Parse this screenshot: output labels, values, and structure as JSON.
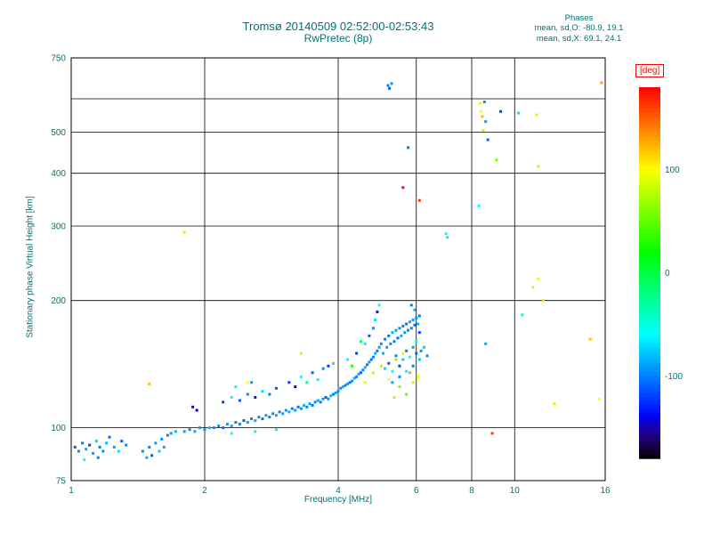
{
  "title": "Tromsø 20140509 02:52:00-02:53:43",
  "subtitle": "RwPretec (8p)",
  "stats": {
    "header": "Phases",
    "line_o": "mean, sd,O: -80.9, 19.1",
    "line_x": "mean, sd,X:  69.1, 24.1"
  },
  "colors": {
    "text": "#007373",
    "grid": "#000000",
    "background": "#ffffff",
    "colorbar_label": "#ff0000"
  },
  "chart_data": {
    "type": "scatter",
    "title": "Tromsø 20140509 02:52:00-02:53:43",
    "subtitle": "RwPretec (8p)",
    "xlabel": "Frequency [MHz]",
    "ylabel": "Stationary phase Virtual Height [km]",
    "x_scale": "log",
    "y_scale": "log",
    "xlim": [
      1,
      16
    ],
    "ylim": [
      75,
      750
    ],
    "x_ticks": [
      1,
      2,
      4,
      6,
      8,
      10,
      16
    ],
    "y_ticks": [
      750,
      500,
      400,
      300,
      200,
      100,
      75
    ],
    "x_gridlines": [
      2,
      4,
      6,
      8,
      10
    ],
    "y_gridlines": [
      100,
      200,
      300,
      400,
      500,
      600
    ],
    "grid": true,
    "colorbar": {
      "label": "[deg]",
      "min": -180,
      "max": 180,
      "ticks": [
        100,
        0,
        -100
      ]
    },
    "point_format": [
      "frequency_MHz",
      "virtual_height_km",
      "phase_deg"
    ],
    "points": [
      [
        1.02,
        90,
        -110
      ],
      [
        1.04,
        88,
        -95
      ],
      [
        1.06,
        92,
        -100
      ],
      [
        1.07,
        84,
        -60
      ],
      [
        1.08,
        89,
        -85
      ],
      [
        1.1,
        91,
        -120
      ],
      [
        1.12,
        87,
        -90
      ],
      [
        1.14,
        93,
        -75
      ],
      [
        1.15,
        85,
        -100
      ],
      [
        1.16,
        90,
        -100
      ],
      [
        1.18,
        88,
        -95
      ],
      [
        1.2,
        92,
        -80
      ],
      [
        1.22,
        95,
        -105
      ],
      [
        1.25,
        90,
        -90
      ],
      [
        1.28,
        88,
        -70
      ],
      [
        1.3,
        93,
        -110
      ],
      [
        1.33,
        91,
        -95
      ],
      [
        1.45,
        88,
        -95
      ],
      [
        1.48,
        85,
        -85
      ],
      [
        1.5,
        90,
        -100
      ],
      [
        1.52,
        86,
        -110
      ],
      [
        1.55,
        92,
        -90
      ],
      [
        1.58,
        88,
        -75
      ],
      [
        1.6,
        94,
        -95
      ],
      [
        1.62,
        90,
        -85
      ],
      [
        1.65,
        96,
        -100
      ],
      [
        1.68,
        97,
        -90
      ],
      [
        1.72,
        98,
        -80
      ],
      [
        1.8,
        98,
        -90
      ],
      [
        1.85,
        99,
        -100
      ],
      [
        1.88,
        112,
        -135
      ],
      [
        1.9,
        98,
        -85
      ],
      [
        1.92,
        110,
        -145
      ],
      [
        1.95,
        100,
        -95
      ],
      [
        2.0,
        99,
        -90
      ],
      [
        2.05,
        100,
        -80
      ],
      [
        2.1,
        100,
        -95
      ],
      [
        2.15,
        101,
        -95
      ],
      [
        2.2,
        100,
        -105
      ],
      [
        2.25,
        102,
        -90
      ],
      [
        2.3,
        101,
        -85
      ],
      [
        2.3,
        97,
        -60
      ],
      [
        2.35,
        103,
        -100
      ],
      [
        2.4,
        102,
        -95
      ],
      [
        2.45,
        104,
        -110
      ],
      [
        2.5,
        103,
        -90
      ],
      [
        2.55,
        105,
        -100
      ],
      [
        2.6,
        104,
        -85
      ],
      [
        2.6,
        98,
        -55
      ],
      [
        2.65,
        106,
        -95
      ],
      [
        2.7,
        105,
        -105
      ],
      [
        2.75,
        107,
        -90
      ],
      [
        2.8,
        106,
        -100
      ],
      [
        2.85,
        108,
        -95
      ],
      [
        2.9,
        107,
        -85
      ],
      [
        2.9,
        99,
        -65
      ],
      [
        2.95,
        109,
        -100
      ],
      [
        3.0,
        108,
        -90
      ],
      [
        2.2,
        115,
        -120
      ],
      [
        2.3,
        118,
        -60
      ],
      [
        2.4,
        116,
        -110
      ],
      [
        2.5,
        120,
        -95
      ],
      [
        2.6,
        118,
        -130
      ],
      [
        2.7,
        122,
        -70
      ],
      [
        2.8,
        120,
        -100
      ],
      [
        2.9,
        124,
        -115
      ],
      [
        2.35,
        125,
        -50
      ],
      [
        2.55,
        128,
        -90
      ],
      [
        2.5,
        128,
        100
      ],
      [
        3.05,
        110,
        -95
      ],
      [
        3.1,
        109,
        -85
      ],
      [
        3.15,
        111,
        -100
      ],
      [
        3.2,
        110,
        -90
      ],
      [
        3.25,
        112,
        -105
      ],
      [
        3.3,
        111,
        -95
      ],
      [
        3.35,
        113,
        -85
      ],
      [
        3.4,
        112,
        -100
      ],
      [
        3.45,
        114,
        -90
      ],
      [
        3.5,
        113,
        -105
      ],
      [
        3.55,
        115,
        -95
      ],
      [
        3.6,
        116,
        -85
      ],
      [
        3.65,
        115,
        -100
      ],
      [
        3.7,
        117,
        -90
      ],
      [
        3.75,
        118,
        -105
      ],
      [
        3.8,
        117,
        -95
      ],
      [
        3.85,
        119,
        -85
      ],
      [
        3.9,
        120,
        -100
      ],
      [
        3.95,
        121,
        -90
      ],
      [
        4.0,
        122,
        -95
      ],
      [
        3.1,
        128,
        -120
      ],
      [
        3.3,
        132,
        -60
      ],
      [
        3.5,
        135,
        -110
      ],
      [
        3.6,
        130,
        -45
      ],
      [
        3.7,
        138,
        -95
      ],
      [
        3.8,
        140,
        -125
      ],
      [
        3.9,
        142,
        -70
      ],
      [
        3.2,
        125,
        -140
      ],
      [
        3.4,
        128,
        -30
      ],
      [
        3.3,
        150,
        110
      ],
      [
        4.05,
        124,
        -95
      ],
      [
        4.1,
        125,
        -85
      ],
      [
        4.15,
        126,
        -100
      ],
      [
        4.2,
        127,
        -90
      ],
      [
        4.25,
        128,
        -105
      ],
      [
        4.3,
        129,
        -95
      ],
      [
        4.35,
        131,
        -85
      ],
      [
        4.4,
        132,
        -100
      ],
      [
        4.45,
        134,
        -90
      ],
      [
        4.5,
        135,
        -105
      ],
      [
        4.55,
        137,
        -95
      ],
      [
        4.6,
        139,
        -85
      ],
      [
        4.65,
        141,
        -100
      ],
      [
        4.7,
        143,
        -90
      ],
      [
        4.75,
        145,
        -105
      ],
      [
        4.8,
        147,
        -95
      ],
      [
        4.85,
        150,
        -85
      ],
      [
        4.9,
        152,
        -100
      ],
      [
        4.95,
        155,
        -90
      ],
      [
        4.2,
        145,
        -60
      ],
      [
        4.4,
        150,
        -120
      ],
      [
        4.6,
        158,
        -40
      ],
      [
        4.7,
        165,
        -110
      ],
      [
        4.8,
        172,
        -95
      ],
      [
        4.85,
        180,
        -70
      ],
      [
        4.9,
        188,
        -130
      ],
      [
        4.95,
        195,
        -55
      ],
      [
        4.5,
        160,
        -20
      ],
      [
        4.3,
        140,
        30
      ],
      [
        4.6,
        128,
        90
      ],
      [
        4.8,
        135,
        110
      ],
      [
        5.0,
        140,
        70
      ],
      [
        5.2,
        130,
        100
      ],
      [
        5.4,
        145,
        120
      ],
      [
        5.6,
        150,
        90
      ],
      [
        5.5,
        125,
        60
      ],
      [
        5.8,
        135,
        130
      ],
      [
        5.9,
        128,
        80
      ],
      [
        5.7,
        120,
        50
      ],
      [
        5.35,
        118,
        75
      ],
      [
        6.05,
        132,
        95
      ],
      [
        5.0,
        158,
        -95
      ],
      [
        5.05,
        150,
        -85
      ],
      [
        5.1,
        162,
        -100
      ],
      [
        5.15,
        155,
        -90
      ],
      [
        5.2,
        165,
        -105
      ],
      [
        5.25,
        158,
        -95
      ],
      [
        5.3,
        168,
        -85
      ],
      [
        5.35,
        160,
        -100
      ],
      [
        5.4,
        170,
        -90
      ],
      [
        5.45,
        163,
        -105
      ],
      [
        5.5,
        172,
        -95
      ],
      [
        5.55,
        165,
        -85
      ],
      [
        5.6,
        174,
        -100
      ],
      [
        5.65,
        168,
        -90
      ],
      [
        5.7,
        176,
        -105
      ],
      [
        5.75,
        170,
        -95
      ],
      [
        5.8,
        178,
        -85
      ],
      [
        5.85,
        172,
        -100
      ],
      [
        5.9,
        180,
        -90
      ],
      [
        5.95,
        175,
        -105
      ],
      [
        6.0,
        182,
        -95
      ],
      [
        6.05,
        176,
        -85
      ],
      [
        6.1,
        184,
        -100
      ],
      [
        5.1,
        138,
        -70
      ],
      [
        5.2,
        142,
        -110
      ],
      [
        5.3,
        136,
        -60
      ],
      [
        5.4,
        148,
        -95
      ],
      [
        5.5,
        140,
        -120
      ],
      [
        5.6,
        145,
        -75
      ],
      [
        5.7,
        152,
        -100
      ],
      [
        5.8,
        147,
        -55
      ],
      [
        5.9,
        155,
        -90
      ],
      [
        6.0,
        150,
        -110
      ],
      [
        5.3,
        128,
        -85
      ],
      [
        5.5,
        132,
        -95
      ],
      [
        5.7,
        136,
        -65
      ],
      [
        5.9,
        140,
        -100
      ],
      [
        6.1,
        145,
        -80
      ],
      [
        6.0,
        160,
        -50
      ],
      [
        6.1,
        168,
        -120
      ],
      [
        5.95,
        190,
        -85
      ],
      [
        5.85,
        195,
        -100
      ],
      [
        6.15,
        152,
        -95
      ],
      [
        6.25,
        155,
        -75
      ],
      [
        6.35,
        148,
        -95
      ],
      [
        5.18,
        645,
        -100
      ],
      [
        5.22,
        635,
        -110
      ],
      [
        5.28,
        652,
        -90
      ],
      [
        15.7,
        655,
        130
      ],
      [
        8.35,
        585,
        95
      ],
      [
        8.55,
        590,
        -95
      ],
      [
        8.4,
        560,
        100
      ],
      [
        8.6,
        530,
        -90
      ],
      [
        8.5,
        505,
        80
      ],
      [
        8.7,
        480,
        -110
      ],
      [
        8.45,
        545,
        120
      ],
      [
        9.3,
        560,
        -120
      ],
      [
        9.1,
        430,
        60
      ],
      [
        10.2,
        555,
        -70
      ],
      [
        11.2,
        550,
        90
      ],
      [
        11.3,
        415,
        110
      ],
      [
        5.75,
        460,
        -100
      ],
      [
        8.3,
        335,
        -60
      ],
      [
        5.6,
        370,
        175
      ],
      [
        6.1,
        345,
        165
      ],
      [
        7.0,
        288,
        -60
      ],
      [
        7.05,
        282,
        -65
      ],
      [
        1.8,
        290,
        110
      ],
      [
        11.3,
        225,
        95
      ],
      [
        11.0,
        215,
        85
      ],
      [
        11.6,
        200,
        110
      ],
      [
        10.4,
        185,
        -40
      ],
      [
        8.6,
        158,
        -85
      ],
      [
        8.9,
        97,
        160
      ],
      [
        15.5,
        117,
        100
      ],
      [
        14.8,
        162,
        120
      ],
      [
        12.3,
        114,
        85
      ],
      [
        1.5,
        127,
        120
      ]
    ]
  }
}
